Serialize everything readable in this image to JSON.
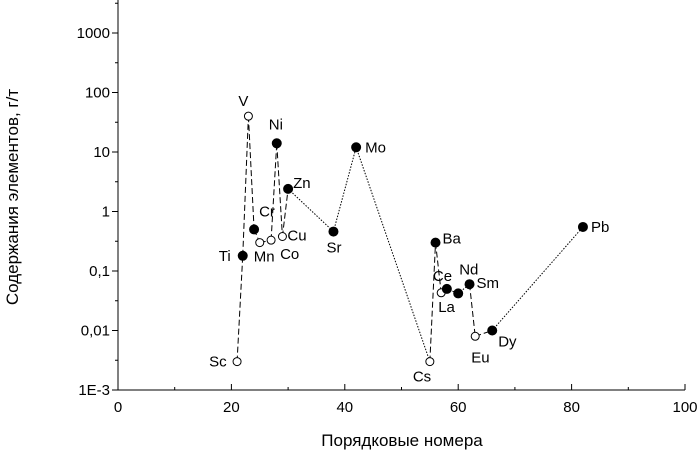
{
  "chart_data": {
    "type": "scatter",
    "xlabel": "Порядковые номера",
    "ylabel": "Содержания элементов, г/т",
    "xlim": [
      0,
      100
    ],
    "ylim": [
      0.001,
      5000
    ],
    "y_scale": "log",
    "x_ticks": [
      0,
      20,
      40,
      60,
      80,
      100
    ],
    "x_tick_labels": [
      "0",
      "20",
      "40",
      "60",
      "80",
      "100"
    ],
    "y_ticks": [
      0.001,
      0.01,
      0.1,
      1,
      10,
      100,
      1000
    ],
    "y_tick_labels": [
      "1E-3",
      "0,01",
      "0,1",
      "1",
      "10",
      "100",
      "1000"
    ],
    "grid": false,
    "points": [
      {
        "label": "Sc",
        "x": 21,
        "y": 0.003,
        "marker": "open"
      },
      {
        "label": "Ti",
        "x": 22,
        "y": 0.18,
        "marker": "filled"
      },
      {
        "label": "V",
        "x": 23,
        "y": 40,
        "marker": "open"
      },
      {
        "label": "Cr",
        "x": 24,
        "y": 0.5,
        "marker": "filled"
      },
      {
        "label": "Mn",
        "x": 25,
        "y": 0.3,
        "marker": "open"
      },
      {
        "label": "Co",
        "x": 27,
        "y": 0.33,
        "marker": "open"
      },
      {
        "label": "Ni",
        "x": 28,
        "y": 14,
        "marker": "filled"
      },
      {
        "label": "Cu",
        "x": 29,
        "y": 0.38,
        "marker": "open"
      },
      {
        "label": "Zn",
        "x": 30,
        "y": 2.4,
        "marker": "filled"
      },
      {
        "label": "Sr",
        "x": 38,
        "y": 0.46,
        "marker": "filled"
      },
      {
        "label": "Mo",
        "x": 42,
        "y": 12,
        "marker": "filled"
      },
      {
        "label": "Cs",
        "x": 55,
        "y": 0.003,
        "marker": "open"
      },
      {
        "label": "Ba",
        "x": 56,
        "y": 0.3,
        "marker": "filled"
      },
      {
        "label": "La",
        "x": 57,
        "y": 0.043,
        "marker": "open"
      },
      {
        "label": "Ce",
        "x": 58,
        "y": 0.05,
        "marker": "filled"
      },
      {
        "label": "Nd",
        "x": 60,
        "y": 0.042,
        "marker": "filled"
      },
      {
        "label": "Sm",
        "x": 62,
        "y": 0.06,
        "marker": "filled"
      },
      {
        "label": "Eu",
        "x": 63,
        "y": 0.008,
        "marker": "open"
      },
      {
        "label": "Dy",
        "x": 66,
        "y": 0.01,
        "marker": "filled"
      },
      {
        "label": "Pb",
        "x": 82,
        "y": 0.55,
        "marker": "filled"
      }
    ],
    "connectors": [
      {
        "from": "Sc",
        "to": "Ti",
        "style": "dashed"
      },
      {
        "from": "Ti",
        "to": "V",
        "style": "dashed"
      },
      {
        "from": "V",
        "to": "Cr",
        "style": "dashed"
      },
      {
        "from": "Cr",
        "to": "Mn",
        "style": "dashed"
      },
      {
        "from": "Mn",
        "to": "Co",
        "style": "dashed"
      },
      {
        "from": "Co",
        "to": "Ni",
        "style": "dashed"
      },
      {
        "from": "Ni",
        "to": "Cu",
        "style": "dashed"
      },
      {
        "from": "Cu",
        "to": "Zn",
        "style": "dashed"
      },
      {
        "from": "Zn",
        "to": "Sr",
        "style": "dotted"
      },
      {
        "from": "Sr",
        "to": "Mo",
        "style": "dotted"
      },
      {
        "from": "Mo",
        "to": "Cs",
        "style": "dotted"
      },
      {
        "from": "Cs",
        "to": "Ba",
        "style": "dashed"
      },
      {
        "from": "Ba",
        "to": "La",
        "style": "dashed"
      },
      {
        "from": "La",
        "to": "Ce",
        "style": "dashed"
      },
      {
        "from": "Ce",
        "to": "Nd",
        "style": "dotted"
      },
      {
        "from": "Nd",
        "to": "Sm",
        "style": "dotted"
      },
      {
        "from": "Sm",
        "to": "Eu",
        "style": "dashed"
      },
      {
        "from": "Eu",
        "to": "Dy",
        "style": "dashed"
      },
      {
        "from": "Dy",
        "to": "Pb",
        "style": "dotted"
      }
    ]
  }
}
